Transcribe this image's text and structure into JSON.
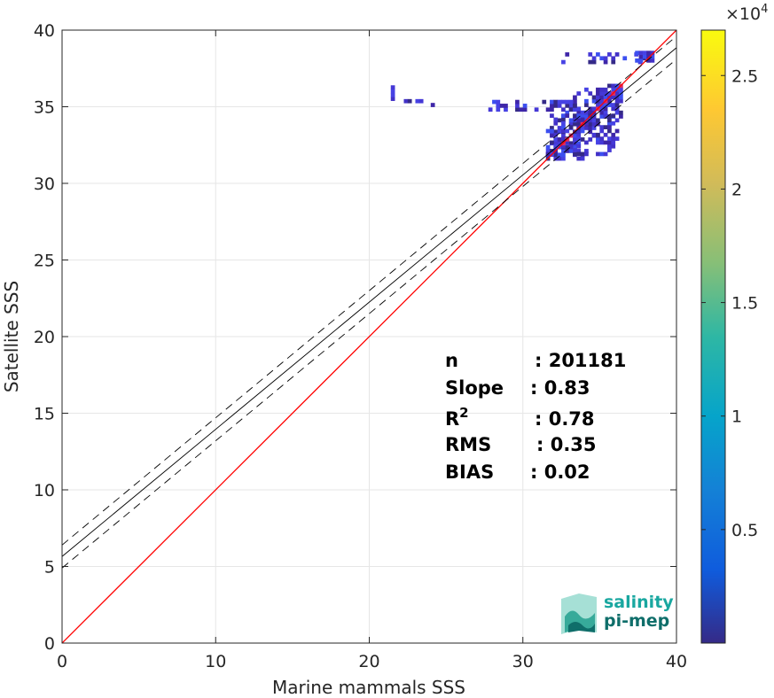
{
  "chart_data": {
    "type": "scatter",
    "subtype": "2d-density-histogram",
    "xlabel": "Marine mammals SSS",
    "ylabel": "Satellite SSS",
    "xlim": [
      0,
      40
    ],
    "ylim": [
      0,
      40
    ],
    "xticks": [
      "0",
      "10",
      "20",
      "30",
      "40"
    ],
    "yticks": [
      "0",
      "5",
      "10",
      "15",
      "20",
      "25",
      "30",
      "35",
      "40"
    ],
    "grid": true,
    "colormap": "parula",
    "colorbar": {
      "range": [
        0,
        27000
      ],
      "exponent_label": "×10",
      "exponent": "4",
      "ticks": [
        {
          "value": 0.5,
          "label": "0.5"
        },
        {
          "value": 1.0,
          "label": "1"
        },
        {
          "value": 1.5,
          "label": "1.5"
        },
        {
          "value": 2.0,
          "label": "2"
        },
        {
          "value": 2.5,
          "label": "2.5"
        }
      ]
    },
    "lines": [
      {
        "name": "identity",
        "color": "#ff0000",
        "style": "solid",
        "x": [
          0,
          40
        ],
        "y": [
          0,
          40
        ]
      },
      {
        "name": "regression",
        "color": "#000000",
        "style": "solid",
        "x": [
          0,
          40
        ],
        "y": [
          5.65,
          38.85
        ]
      },
      {
        "name": "regression-upper",
        "color": "#000000",
        "style": "dashed",
        "x": [
          0,
          40
        ],
        "y": [
          6.4,
          39.6
        ]
      },
      {
        "name": "regression-lower",
        "color": "#000000",
        "style": "dashed",
        "x": [
          0,
          40
        ],
        "y": [
          4.9,
          38.1
        ]
      }
    ],
    "density_clusters": [
      {
        "x": [
          31.5,
          36.5
        ],
        "y": [
          31.5,
          36.5
        ],
        "note": "main diagonal cluster"
      },
      {
        "x": [
          27.5,
          33.5
        ],
        "y": [
          34.7,
          35.3
        ],
        "note": "horizontal band"
      },
      {
        "x": [
          21.4,
          21.6
        ],
        "y": [
          34.9,
          36.3
        ],
        "note": "isolated vertical strip"
      },
      {
        "x": [
          32.5,
          38.5
        ],
        "y": [
          37.8,
          38.5
        ],
        "note": "upper-right cluster"
      }
    ],
    "stats": [
      {
        "label": "n",
        "sep": ": ",
        "value": "201181"
      },
      {
        "label": "Slope",
        "sep": ": ",
        "value": "0.83"
      },
      {
        "label": "R",
        "sup": "2",
        "sep": ": ",
        "value": "0.78"
      },
      {
        "label": "RMS",
        "sep": ": ",
        "value": "0.35"
      },
      {
        "label": "BIAS",
        "sep": ": ",
        "value": "0.02"
      }
    ]
  },
  "logo": {
    "line1": "salinity",
    "line2": "pi-mep",
    "color1": "#19a7a0",
    "color2": "#0f6e6a"
  },
  "colors": {
    "identity": "#ff0000",
    "regression": "#000000",
    "grid": "#e6e6e6",
    "axes": "#262626"
  }
}
